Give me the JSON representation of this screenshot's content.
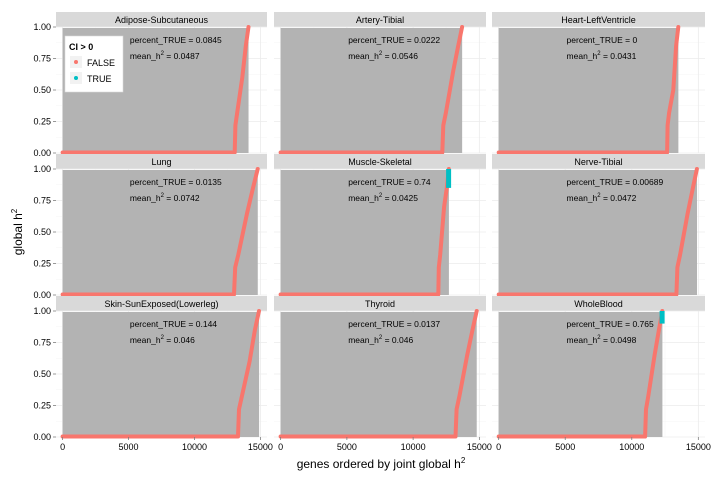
{
  "figure": {
    "xlabel": "genes ordered by joint global h",
    "xlabel_sup": "2",
    "ylabel": "global h",
    "ylabel_sup": "2"
  },
  "legend": {
    "title": "CI > 0",
    "items": [
      {
        "label": "FALSE",
        "color": "#F8766D"
      },
      {
        "label": "TRUE",
        "color": "#00BFC4"
      }
    ],
    "placement": "top-left inside first panel"
  },
  "colors": {
    "false_series": "#F8766D",
    "true_series": "#00BFC4",
    "ribbon": "#B3B3B3",
    "strip": "#D9D9D9",
    "panel_bg": "#FFFFFF",
    "grid": "#EBEBEB"
  },
  "chart_data": {
    "type": "scatter",
    "layout": "facet_wrap 3x3",
    "x_range": [
      -500,
      15500
    ],
    "y_range": [
      0,
      1
    ],
    "x_ticks": [
      "0",
      "5000",
      "10000",
      "15000"
    ],
    "y_ticks": [
      "0.00",
      "0.25",
      "0.50",
      "0.75",
      "1.00"
    ],
    "annotation_labels": {
      "percent": "percent_TRUE = ",
      "mean": "mean_h",
      "mean_sup": "2",
      "mean_eq": " = "
    },
    "panels": [
      {
        "title": "Adipose-Subcutaneous",
        "percent_TRUE": "0.0845",
        "mean_h2": "0.0487",
        "n_genes": 14100,
        "rise_start": 13050,
        "mid_frac": 0.45,
        "true_frac": 0.0
      },
      {
        "title": "Artery-Tibial",
        "percent_TRUE": "0.0222",
        "mean_h2": "0.0546",
        "n_genes": 13700,
        "rise_start": 12200,
        "mid_frac": 0.5,
        "true_frac": 0.0
      },
      {
        "title": "Heart-LeftVentricle",
        "percent_TRUE": "0",
        "mean_h2": "0.0431",
        "n_genes": 13500,
        "rise_start": 12650,
        "mid_frac": 0.35,
        "true_frac": 0.0
      },
      {
        "title": "Lung",
        "percent_TRUE": "0.0135",
        "mean_h2": "0.0742",
        "n_genes": 14800,
        "rise_start": 13000,
        "mid_frac": 0.5,
        "true_frac": 0.0
      },
      {
        "title": "Muscle-Skeletal",
        "percent_TRUE": "0.74",
        "mean_h2": "0.0425",
        "n_genes": 12700,
        "rise_start": 11900,
        "mid_frac": 0.55,
        "true_frac": 0.85
      },
      {
        "title": "Nerve-Tibial",
        "percent_TRUE": "0.00689",
        "mean_h2": "0.0472",
        "n_genes": 14900,
        "rise_start": 13350,
        "mid_frac": 0.5,
        "true_frac": 0.0
      },
      {
        "title": "Skin-SunExposed(Lowerleg)",
        "percent_TRUE": "0.144",
        "mean_h2": "0.046",
        "n_genes": 14900,
        "rise_start": 13300,
        "mid_frac": 0.45,
        "true_frac": 0.0
      },
      {
        "title": "Thyroid",
        "percent_TRUE": "0.0137",
        "mean_h2": "0.046",
        "n_genes": 14800,
        "rise_start": 13200,
        "mid_frac": 0.5,
        "true_frac": 0.0
      },
      {
        "title": "WholeBlood",
        "percent_TRUE": "0.765",
        "mean_h2": "0.0498",
        "n_genes": 12300,
        "rise_start": 11000,
        "mid_frac": 0.5,
        "true_frac": 0.9
      }
    ]
  }
}
